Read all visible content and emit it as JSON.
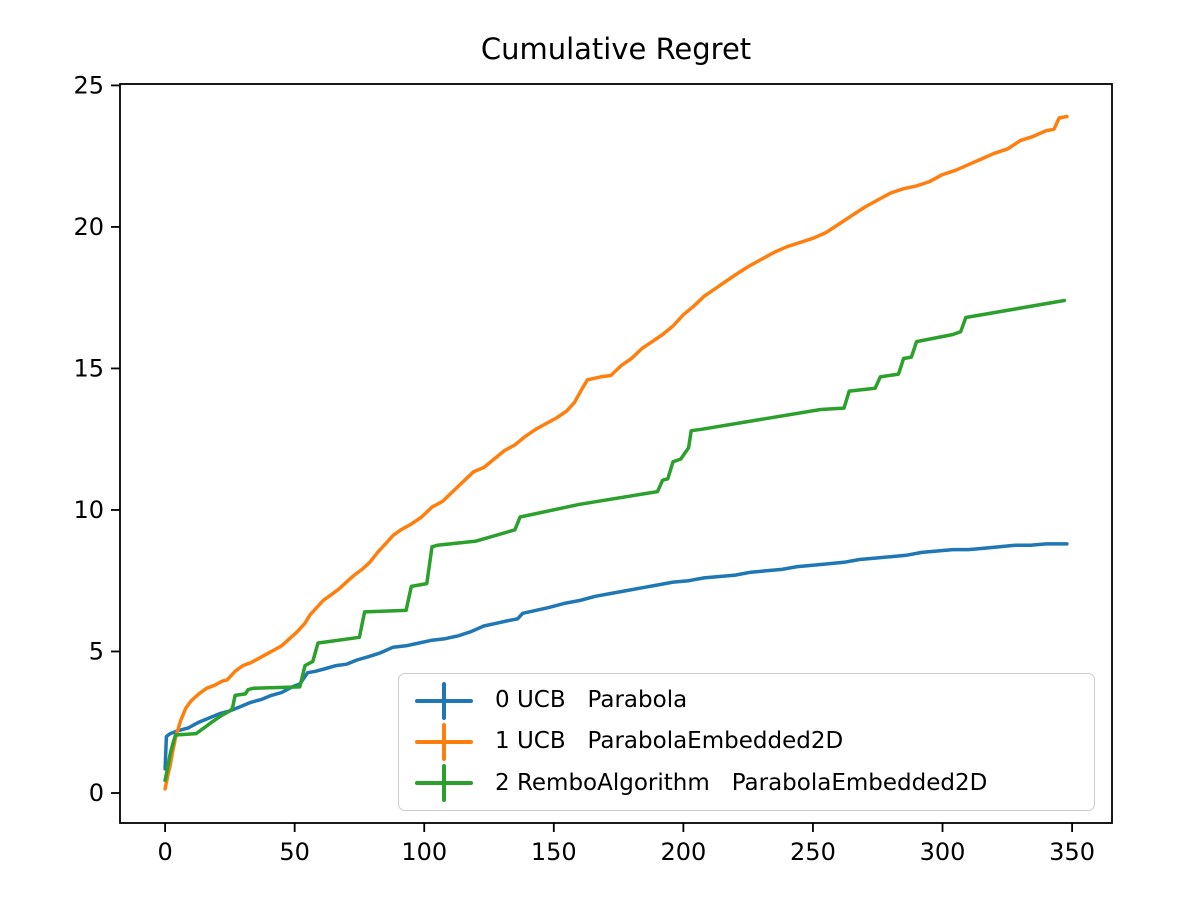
{
  "title": "Cumulative Regret",
  "chart_data": {
    "type": "line",
    "title": "Cumulative Regret",
    "xlabel": "",
    "ylabel": "",
    "xlim": [
      -17.4,
      365.4
    ],
    "ylim": [
      -1.06,
      25.05
    ],
    "xticks": [
      0,
      50,
      100,
      150,
      200,
      250,
      300,
      350
    ],
    "yticks": [
      0,
      5,
      10,
      15,
      20,
      25
    ],
    "grid": false,
    "legend_position": "lower right inside",
    "marker_style": "errorbar",
    "series": [
      {
        "name": "0 UCB   Parabola",
        "color": "#1f77b4",
        "points": [
          [
            0,
            0.85
          ],
          [
            0.5,
            2.0
          ],
          [
            2,
            2.1
          ],
          [
            5,
            2.2
          ],
          [
            9,
            2.3
          ],
          [
            13,
            2.5
          ],
          [
            17,
            2.65
          ],
          [
            21,
            2.8
          ],
          [
            25,
            2.9
          ],
          [
            29,
            3.05
          ],
          [
            33,
            3.2
          ],
          [
            37,
            3.3
          ],
          [
            41,
            3.45
          ],
          [
            45,
            3.55
          ],
          [
            49,
            3.75
          ],
          [
            52,
            3.85
          ],
          [
            55,
            4.25
          ],
          [
            58,
            4.3
          ],
          [
            62,
            4.4
          ],
          [
            66,
            4.5
          ],
          [
            70,
            4.55
          ],
          [
            74,
            4.7
          ],
          [
            78,
            4.8
          ],
          [
            83,
            4.95
          ],
          [
            88,
            5.15
          ],
          [
            93,
            5.2
          ],
          [
            98,
            5.3
          ],
          [
            103,
            5.4
          ],
          [
            108,
            5.45
          ],
          [
            113,
            5.55
          ],
          [
            118,
            5.7
          ],
          [
            123,
            5.9
          ],
          [
            128,
            6.0
          ],
          [
            133,
            6.1
          ],
          [
            136,
            6.15
          ],
          [
            138,
            6.35
          ],
          [
            143,
            6.45
          ],
          [
            148,
            6.55
          ],
          [
            154,
            6.7
          ],
          [
            160,
            6.8
          ],
          [
            166,
            6.95
          ],
          [
            172,
            7.05
          ],
          [
            178,
            7.15
          ],
          [
            184,
            7.25
          ],
          [
            190,
            7.35
          ],
          [
            196,
            7.45
          ],
          [
            202,
            7.5
          ],
          [
            208,
            7.6
          ],
          [
            214,
            7.65
          ],
          [
            220,
            7.7
          ],
          [
            226,
            7.8
          ],
          [
            232,
            7.85
          ],
          [
            238,
            7.9
          ],
          [
            244,
            8.0
          ],
          [
            250,
            8.05
          ],
          [
            256,
            8.1
          ],
          [
            262,
            8.15
          ],
          [
            268,
            8.25
          ],
          [
            274,
            8.3
          ],
          [
            280,
            8.35
          ],
          [
            286,
            8.4
          ],
          [
            292,
            8.5
          ],
          [
            298,
            8.55
          ],
          [
            304,
            8.6
          ],
          [
            310,
            8.6
          ],
          [
            316,
            8.65
          ],
          [
            322,
            8.7
          ],
          [
            328,
            8.75
          ],
          [
            334,
            8.75
          ],
          [
            340,
            8.8
          ],
          [
            344,
            8.8
          ],
          [
            348,
            8.8
          ]
        ]
      },
      {
        "name": "1 UCB   ParabolaEmbedded2D",
        "color": "#ff7f0e",
        "points": [
          [
            0,
            0.15
          ],
          [
            1,
            0.6
          ],
          [
            2,
            1.0
          ],
          [
            3,
            1.5
          ],
          [
            4,
            1.95
          ],
          [
            6,
            2.55
          ],
          [
            8,
            3.0
          ],
          [
            10,
            3.25
          ],
          [
            13,
            3.5
          ],
          [
            16,
            3.7
          ],
          [
            19,
            3.8
          ],
          [
            22,
            3.95
          ],
          [
            24,
            4.0
          ],
          [
            27,
            4.3
          ],
          [
            30,
            4.5
          ],
          [
            33,
            4.6
          ],
          [
            36,
            4.75
          ],
          [
            39,
            4.9
          ],
          [
            42,
            5.05
          ],
          [
            45,
            5.2
          ],
          [
            48,
            5.45
          ],
          [
            51,
            5.7
          ],
          [
            54,
            6.0
          ],
          [
            56,
            6.3
          ],
          [
            58,
            6.5
          ],
          [
            61,
            6.8
          ],
          [
            64,
            7.0
          ],
          [
            67,
            7.2
          ],
          [
            70,
            7.45
          ],
          [
            73,
            7.7
          ],
          [
            76,
            7.9
          ],
          [
            79,
            8.15
          ],
          [
            82,
            8.5
          ],
          [
            85,
            8.8
          ],
          [
            88,
            9.1
          ],
          [
            91,
            9.3
          ],
          [
            95,
            9.5
          ],
          [
            99,
            9.75
          ],
          [
            103,
            10.1
          ],
          [
            107,
            10.3
          ],
          [
            111,
            10.65
          ],
          [
            115,
            11.0
          ],
          [
            119,
            11.35
          ],
          [
            123,
            11.5
          ],
          [
            127,
            11.8
          ],
          [
            131,
            12.1
          ],
          [
            135,
            12.3
          ],
          [
            139,
            12.6
          ],
          [
            143,
            12.85
          ],
          [
            147,
            13.05
          ],
          [
            151,
            13.25
          ],
          [
            155,
            13.5
          ],
          [
            158,
            13.8
          ],
          [
            161,
            14.3
          ],
          [
            163,
            14.6
          ],
          [
            168,
            14.7
          ],
          [
            172,
            14.75
          ],
          [
            176,
            15.1
          ],
          [
            180,
            15.35
          ],
          [
            184,
            15.7
          ],
          [
            188,
            15.95
          ],
          [
            192,
            16.2
          ],
          [
            196,
            16.5
          ],
          [
            200,
            16.9
          ],
          [
            204,
            17.2
          ],
          [
            208,
            17.55
          ],
          [
            212,
            17.8
          ],
          [
            216,
            18.05
          ],
          [
            220,
            18.3
          ],
          [
            225,
            18.6
          ],
          [
            230,
            18.85
          ],
          [
            235,
            19.1
          ],
          [
            240,
            19.3
          ],
          [
            245,
            19.45
          ],
          [
            250,
            19.6
          ],
          [
            255,
            19.8
          ],
          [
            260,
            20.1
          ],
          [
            265,
            20.4
          ],
          [
            270,
            20.7
          ],
          [
            275,
            20.95
          ],
          [
            280,
            21.2
          ],
          [
            285,
            21.35
          ],
          [
            290,
            21.45
          ],
          [
            295,
            21.6
          ],
          [
            300,
            21.85
          ],
          [
            305,
            22.0
          ],
          [
            310,
            22.2
          ],
          [
            315,
            22.4
          ],
          [
            320,
            22.6
          ],
          [
            325,
            22.75
          ],
          [
            330,
            23.05
          ],
          [
            335,
            23.2
          ],
          [
            340,
            23.4
          ],
          [
            343,
            23.45
          ],
          [
            345,
            23.85
          ],
          [
            348,
            23.9
          ]
        ]
      },
      {
        "name": "2 RemboAlgorithm   ParabolaEmbedded2D",
        "color": "#2ca02c",
        "points": [
          [
            0,
            0.45
          ],
          [
            1,
            0.9
          ],
          [
            2,
            1.4
          ],
          [
            3,
            1.75
          ],
          [
            4,
            2.05
          ],
          [
            12,
            2.1
          ],
          [
            15,
            2.3
          ],
          [
            18,
            2.5
          ],
          [
            22,
            2.75
          ],
          [
            25,
            2.9
          ],
          [
            26,
            3.0
          ],
          [
            27,
            3.45
          ],
          [
            31,
            3.5
          ],
          [
            32,
            3.65
          ],
          [
            34,
            3.7
          ],
          [
            52,
            3.75
          ],
          [
            54,
            4.5
          ],
          [
            57,
            4.65
          ],
          [
            59,
            5.3
          ],
          [
            63,
            5.35
          ],
          [
            75,
            5.5
          ],
          [
            77,
            6.4
          ],
          [
            93,
            6.45
          ],
          [
            95,
            7.3
          ],
          [
            101,
            7.4
          ],
          [
            103,
            8.7
          ],
          [
            105,
            8.75
          ],
          [
            120,
            8.9
          ],
          [
            135,
            9.3
          ],
          [
            137,
            9.75
          ],
          [
            160,
            10.2
          ],
          [
            190,
            10.65
          ],
          [
            192,
            11.05
          ],
          [
            194,
            11.1
          ],
          [
            196,
            11.7
          ],
          [
            199,
            11.8
          ],
          [
            202,
            12.2
          ],
          [
            203,
            12.8
          ],
          [
            207,
            12.85
          ],
          [
            253,
            13.55
          ],
          [
            262,
            13.6
          ],
          [
            264,
            14.2
          ],
          [
            274,
            14.3
          ],
          [
            276,
            14.7
          ],
          [
            283,
            14.8
          ],
          [
            285,
            15.35
          ],
          [
            288,
            15.4
          ],
          [
            290,
            15.95
          ],
          [
            304,
            16.2
          ],
          [
            307,
            16.3
          ],
          [
            309,
            16.8
          ],
          [
            347,
            17.4
          ]
        ]
      }
    ]
  }
}
